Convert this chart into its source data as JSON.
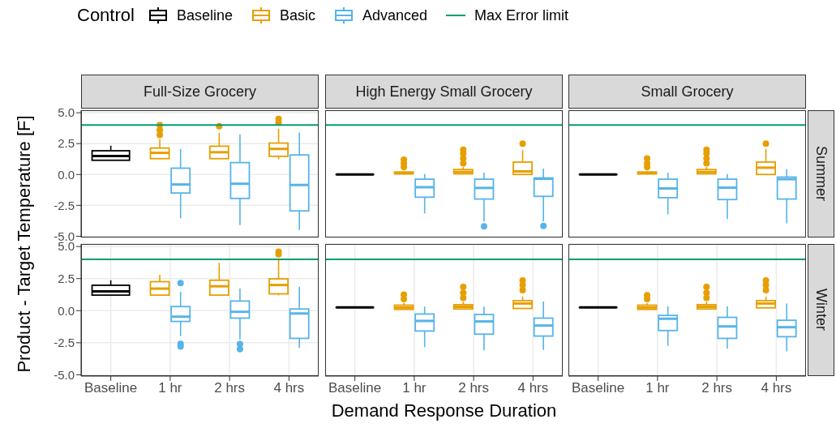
{
  "chart_data": [
    {
      "type": "box",
      "title": "Full-Size Grocery",
      "legend_title": "Control",
      "legend": "top",
      "ylabel": "Product - Target Temperature [F]",
      "categories": [
        "Baseline",
        "1 hr",
        "2 hrs",
        "4 hrs"
      ],
      "ylim": [
        -5.1,
        5.2
      ],
      "yticks": [
        {
          "value": -5,
          "label": "-5.0"
        },
        {
          "value": -2.5,
          "label": "-2.5"
        },
        {
          "value": 0,
          "label": "0.0"
        },
        {
          "value": 2.5,
          "label": "2.5"
        },
        {
          "value": 5,
          "label": "5.0"
        }
      ],
      "grid": true,
      "tick_labels": "y",
      "ref_lines": [
        {
          "axis": "y",
          "value": 4,
          "label": "Max Error limit",
          "color": "#009e73"
        }
      ],
      "series": [
        {
          "name": "Baseline",
          "color": "#000000",
          "boxes": [
            {
              "low": 1.15,
              "q1": 1.15,
              "median": 1.5,
              "q3": 1.92,
              "high": 2.33
            },
            null,
            null,
            null
          ]
        },
        {
          "name": "Basic",
          "color": "#e69f00",
          "boxes": [
            null,
            {
              "low": 1.28,
              "q1": 1.28,
              "median": 1.75,
              "q3": 2.14,
              "high": 2.86,
              "outliers": [
                3.2,
                3.6,
                4.0
              ]
            },
            {
              "low": 1.28,
              "q1": 1.28,
              "median": 1.8,
              "q3": 2.29,
              "high": 3.35,
              "outliers": [
                3.9
              ]
            },
            {
              "low": 1.22,
              "q1": 1.47,
              "median": 2.07,
              "q3": 2.54,
              "high": 3.7,
              "outliers": [
                4.2,
                4.5
              ]
            }
          ]
        },
        {
          "name": "Advanced",
          "color": "#56b4e9",
          "boxes": [
            null,
            {
              "low": -3.55,
              "q1": -1.5,
              "median": -0.81,
              "q3": 0.51,
              "high": 2.07
            },
            {
              "low": -4.1,
              "q1": -1.94,
              "median": -0.75,
              "q3": 0.96,
              "high": 3.25
            },
            {
              "low": -4.5,
              "q1": -2.95,
              "median": -0.85,
              "q3": 1.58,
              "high": 3.4
            }
          ]
        }
      ]
    },
    {
      "type": "box",
      "title": "High Energy Small Grocery",
      "categories": [
        "Baseline",
        "1 hr",
        "2 hrs",
        "4 hrs"
      ],
      "ylim": [
        -5.1,
        5.2
      ],
      "yticks": [
        {
          "value": -5,
          "label": "-5.0"
        },
        {
          "value": -2.5,
          "label": "-2.5"
        },
        {
          "value": 0,
          "label": "0.0"
        },
        {
          "value": 2.5,
          "label": "2.5"
        },
        {
          "value": 5,
          "label": "5.0"
        }
      ],
      "grid": true,
      "tick_labels": false,
      "ref_lines": [
        {
          "axis": "y",
          "value": 4,
          "color": "#009e73"
        }
      ],
      "series": [
        {
          "color": "#000000",
          "boxes": [
            {
              "low": 0,
              "q1": 0,
              "median": 0,
              "q3": 0,
              "high": 0
            },
            null,
            null,
            null
          ]
        },
        {
          "color": "#e69f00",
          "boxes": [
            null,
            {
              "low": 0,
              "q1": 0.05,
              "median": 0.1,
              "q3": 0.2,
              "high": 0.3,
              "outliers": [
                0.6,
                0.9,
                1.2
              ]
            },
            {
              "low": 0,
              "q1": 0.05,
              "median": 0.2,
              "q3": 0.4,
              "high": 0.6,
              "outliers": [
                0.9,
                1.3,
                1.7,
                2.0
              ]
            },
            {
              "low": 0,
              "q1": 0,
              "median": 0.25,
              "q3": 1.0,
              "high": 1.97,
              "outliers": [
                2.5
              ]
            }
          ]
        },
        {
          "color": "#56b4e9",
          "boxes": [
            null,
            {
              "low": -3.16,
              "q1": -1.84,
              "median": -1.03,
              "q3": -0.38,
              "high": 0.04
            },
            {
              "low": -3.8,
              "q1": -1.99,
              "median": -1.09,
              "q3": -0.38,
              "high": 0.15,
              "outliers": [
                -4.2
              ]
            },
            {
              "low": -3.8,
              "q1": -1.77,
              "median": -0.35,
              "q3": -0.28,
              "high": 0.47,
              "outliers": [
                -4.17
              ]
            }
          ]
        }
      ]
    },
    {
      "type": "box",
      "title": "Small Grocery",
      "subtitle": "Summer",
      "categories": [
        "Baseline",
        "1 hr",
        "2 hrs",
        "4 hrs"
      ],
      "ylim": [
        -5.1,
        5.2
      ],
      "yticks": [
        {
          "value": -5,
          "label": "-5.0"
        },
        {
          "value": -2.5,
          "label": "-2.5"
        },
        {
          "value": 0,
          "label": "0.0"
        },
        {
          "value": 2.5,
          "label": "2.5"
        },
        {
          "value": 5,
          "label": "5.0"
        }
      ],
      "grid": true,
      "tick_labels": false,
      "ref_lines": [
        {
          "axis": "y",
          "value": 4,
          "color": "#009e73"
        }
      ],
      "series": [
        {
          "color": "#000000",
          "boxes": [
            {
              "low": 0,
              "q1": 0,
              "median": 0,
              "q3": 0,
              "high": 0
            },
            null,
            null,
            null
          ]
        },
        {
          "color": "#e69f00",
          "boxes": [
            null,
            {
              "low": 0,
              "q1": 0.05,
              "median": 0.1,
              "q3": 0.2,
              "high": 0.3,
              "outliers": [
                0.6,
                0.9,
                1.3
              ]
            },
            {
              "low": 0,
              "q1": 0.05,
              "median": 0.2,
              "q3": 0.4,
              "high": 0.6,
              "outliers": [
                0.9,
                1.3,
                1.7,
                2.0
              ]
            },
            {
              "low": 0,
              "q1": 0,
              "median": 0.55,
              "q3": 1.0,
              "high": 2.07,
              "outliers": [
                2.5
              ]
            }
          ]
        },
        {
          "color": "#56b4e9",
          "boxes": [
            null,
            {
              "low": -3.23,
              "q1": -1.88,
              "median": -1.13,
              "q3": -0.38,
              "high": 0.15
            },
            {
              "low": -3.6,
              "q1": -2.03,
              "median": -1.07,
              "q3": -0.38,
              "high": 0.04
            },
            {
              "low": -3.95,
              "q1": -1.99,
              "median": -0.38,
              "q3": -0.21,
              "high": 0.43
            }
          ]
        }
      ]
    },
    {
      "type": "box",
      "categories": [
        "Baseline",
        "1 hr",
        "2 hrs",
        "4 hrs"
      ],
      "ylim": [
        -5.1,
        5.2
      ],
      "yticks": [
        {
          "value": -5,
          "label": "-5.0"
        },
        {
          "value": -2.5,
          "label": "-2.5"
        },
        {
          "value": 0,
          "label": "0.0"
        },
        {
          "value": 2.5,
          "label": "2.5"
        },
        {
          "value": 5,
          "label": "5.0"
        }
      ],
      "grid": true,
      "ref_lines": [
        {
          "axis": "y",
          "value": 4,
          "color": "#009e73"
        }
      ],
      "series": [
        {
          "color": "#000000",
          "boxes": [
            {
              "low": 1.21,
              "q1": 1.21,
              "median": 1.5,
              "q3": 1.98,
              "high": 2.37
            },
            null,
            null,
            null
          ]
        },
        {
          "color": "#e69f00",
          "boxes": [
            null,
            {
              "low": 1.21,
              "q1": 1.21,
              "median": 1.72,
              "q3": 2.26,
              "high": 2.8
            },
            {
              "low": 1.21,
              "q1": 1.21,
              "median": 1.9,
              "q3": 2.37,
              "high": 3.73
            },
            {
              "low": 1.19,
              "q1": 1.31,
              "median": 2.0,
              "q3": 2.48,
              "high": 3.94,
              "outliers": [
                4.4,
                4.6
              ]
            }
          ]
        },
        {
          "color": "#56b4e9",
          "boxes": [
            null,
            {
              "low": -1.98,
              "q1": -0.84,
              "median": -0.47,
              "q3": 0.32,
              "high": 1.47,
              "outliers": [
                2.15,
                -2.59,
                -2.8
              ]
            },
            {
              "low": -2.24,
              "q1": -0.58,
              "median": -0.09,
              "q3": 0.75,
              "high": 1.72,
              "outliers": [
                -2.6,
                -3.0
              ]
            },
            {
              "low": -2.91,
              "q1": -2.16,
              "median": -0.22,
              "q3": 0.13,
              "high": 1.85
            }
          ]
        }
      ]
    },
    {
      "type": "box",
      "xlabel": "Demand Response Duration",
      "categories": [
        "Baseline",
        "1 hr",
        "2 hrs",
        "4 hrs"
      ],
      "ylim": [
        -5.1,
        5.2
      ],
      "yticks": [
        {
          "value": -5,
          "label": "-5.0"
        },
        {
          "value": -2.5,
          "label": "-2.5"
        },
        {
          "value": 0,
          "label": "0.0"
        },
        {
          "value": 2.5,
          "label": "2.5"
        },
        {
          "value": 5,
          "label": "5.0"
        }
      ],
      "grid": true,
      "tick_labels": "x",
      "ref_lines": [
        {
          "axis": "y",
          "value": 4,
          "color": "#009e73"
        }
      ],
      "series": [
        {
          "color": "#000000",
          "boxes": [
            {
              "low": 0.25,
              "q1": 0.25,
              "median": 0.25,
              "q3": 0.25,
              "high": 0.25
            },
            null,
            null,
            null
          ]
        },
        {
          "color": "#e69f00",
          "boxes": [
            null,
            {
              "low": 0.1,
              "q1": 0.1,
              "median": 0.25,
              "q3": 0.43,
              "high": 0.6,
              "outliers": [
                0.9,
                1.25
              ]
            },
            {
              "low": 0.13,
              "q1": 0.13,
              "median": 0.3,
              "q3": 0.47,
              "high": 0.7,
              "outliers": [
                1.0,
                1.4,
                1.85
              ]
            },
            {
              "low": 0.17,
              "q1": 0.17,
              "median": 0.56,
              "q3": 0.78,
              "high": 1.1,
              "outliers": [
                1.6,
                2.0,
                2.35
              ]
            }
          ]
        },
        {
          "color": "#56b4e9",
          "boxes": [
            null,
            {
              "low": -2.84,
              "q1": -1.59,
              "median": -0.8,
              "q3": -0.26,
              "high": 0.32
            },
            {
              "low": -3.1,
              "q1": -1.83,
              "median": -0.84,
              "q3": -0.3,
              "high": 0.32
            },
            {
              "low": -3.06,
              "q1": -1.98,
              "median": -1.16,
              "q3": -0.58,
              "high": 0.71
            }
          ]
        }
      ]
    },
    {
      "type": "box",
      "subtitle": "Winter",
      "categories": [
        "Baseline",
        "1 hr",
        "2 hrs",
        "4 hrs"
      ],
      "ylim": [
        -5.1,
        5.2
      ],
      "yticks": [
        {
          "value": -5,
          "label": "-5.0"
        },
        {
          "value": -2.5,
          "label": "-2.5"
        },
        {
          "value": 0,
          "label": "0.0"
        },
        {
          "value": 2.5,
          "label": "2.5"
        },
        {
          "value": 5,
          "label": "5.0"
        }
      ],
      "grid": true,
      "tick_labels": "x",
      "ref_lines": [
        {
          "axis": "y",
          "value": 4,
          "color": "#009e73"
        }
      ],
      "series": [
        {
          "color": "#000000",
          "boxes": [
            {
              "low": 0.25,
              "q1": 0.25,
              "median": 0.25,
              "q3": 0.25,
              "high": 0.25
            },
            null,
            null,
            null
          ]
        },
        {
          "color": "#e69f00",
          "boxes": [
            null,
            {
              "low": 0.1,
              "q1": 0.1,
              "median": 0.25,
              "q3": 0.43,
              "high": 0.6,
              "outliers": [
                0.9,
                1.2
              ]
            },
            {
              "low": 0.13,
              "q1": 0.13,
              "median": 0.3,
              "q3": 0.47,
              "high": 0.7,
              "outliers": [
                1.0,
                1.4,
                1.85
              ]
            },
            {
              "low": 0.22,
              "q1": 0.22,
              "median": 0.56,
              "q3": 0.78,
              "high": 1.1,
              "outliers": [
                1.6,
                2.0,
                2.35
              ]
            }
          ]
        },
        {
          "color": "#56b4e9",
          "boxes": [
            null,
            {
              "low": -2.74,
              "q1": -1.55,
              "median": -0.63,
              "q3": -0.37,
              "high": 0.34
            },
            {
              "low": -2.95,
              "q1": -2.16,
              "median": -1.23,
              "q3": -0.52,
              "high": 0.34
            },
            {
              "low": -3.17,
              "q1": -2.03,
              "median": -1.29,
              "q3": -0.75,
              "high": 0.56
            }
          ]
        }
      ]
    }
  ]
}
